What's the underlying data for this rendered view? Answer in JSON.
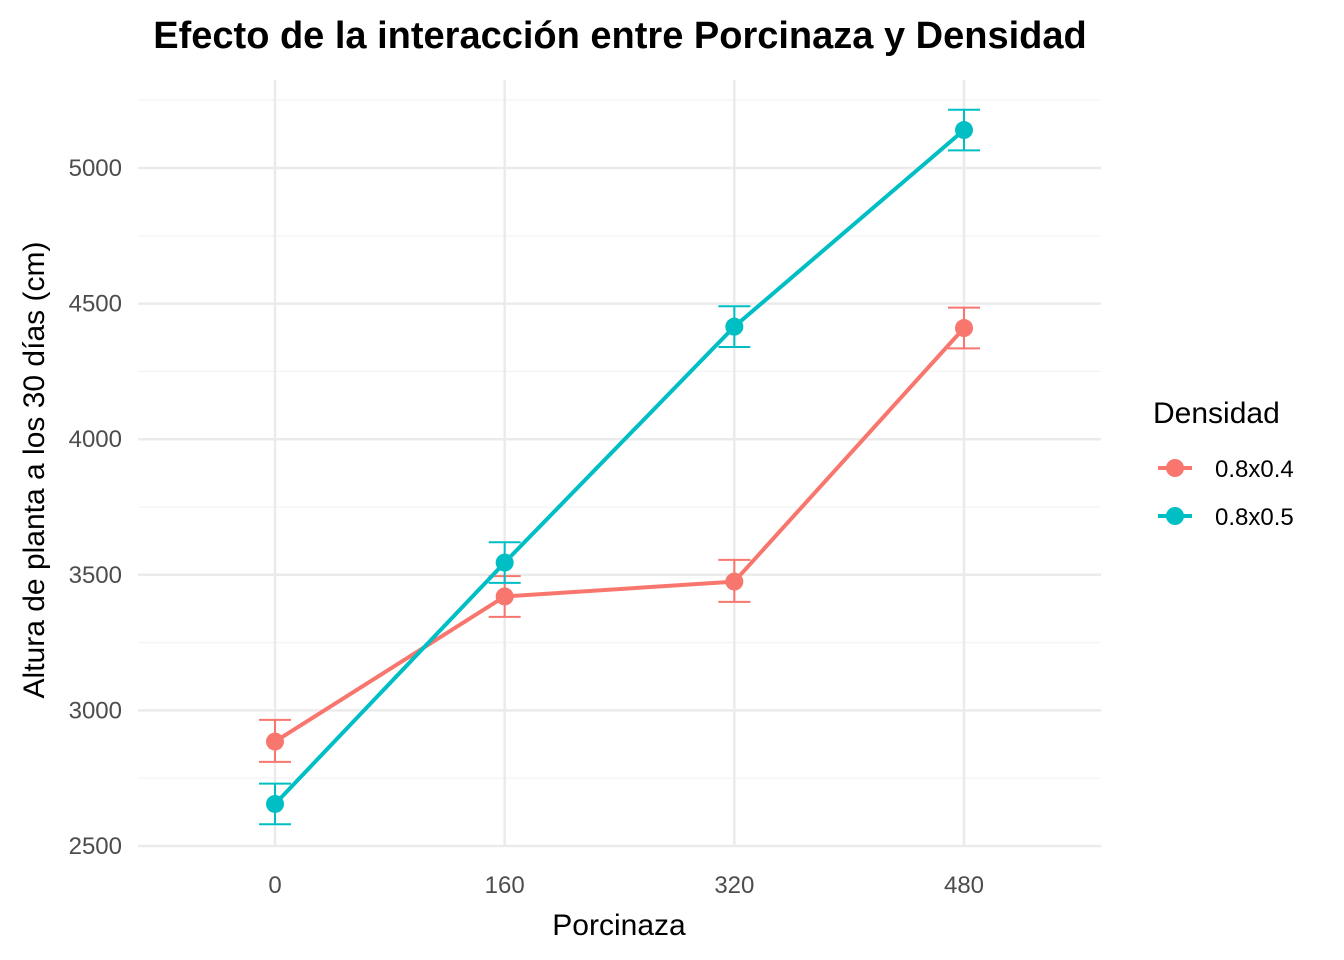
{
  "chart_data": {
    "type": "line",
    "title": "Efecto de la interacción entre Porcinaza y Densidad",
    "xlabel": "Porcinaza",
    "ylabel": "Altura de planta a los 30 días (cm)",
    "categories": [
      "0",
      "160",
      "320",
      "480"
    ],
    "yticks": [
      "2500",
      "3000",
      "3500",
      "4000",
      "4500",
      "5000"
    ],
    "ylim": [
      2500,
      5250
    ],
    "grid": true,
    "legend": {
      "title": "Densidad",
      "position": "right"
    },
    "series": [
      {
        "name": "0.8x0.4",
        "color": "#F8766D",
        "values": [
          2885,
          3420,
          3475,
          4410
        ],
        "error_low": [
          2810,
          3345,
          3400,
          4335
        ],
        "error_high": [
          2965,
          3495,
          3555,
          4485
        ]
      },
      {
        "name": "0.8x0.5",
        "color": "#00BFC4",
        "values": [
          2655,
          3545,
          4415,
          5140
        ],
        "error_low": [
          2580,
          3470,
          4340,
          5065
        ],
        "error_high": [
          2730,
          3620,
          4490,
          5215
        ]
      }
    ]
  }
}
